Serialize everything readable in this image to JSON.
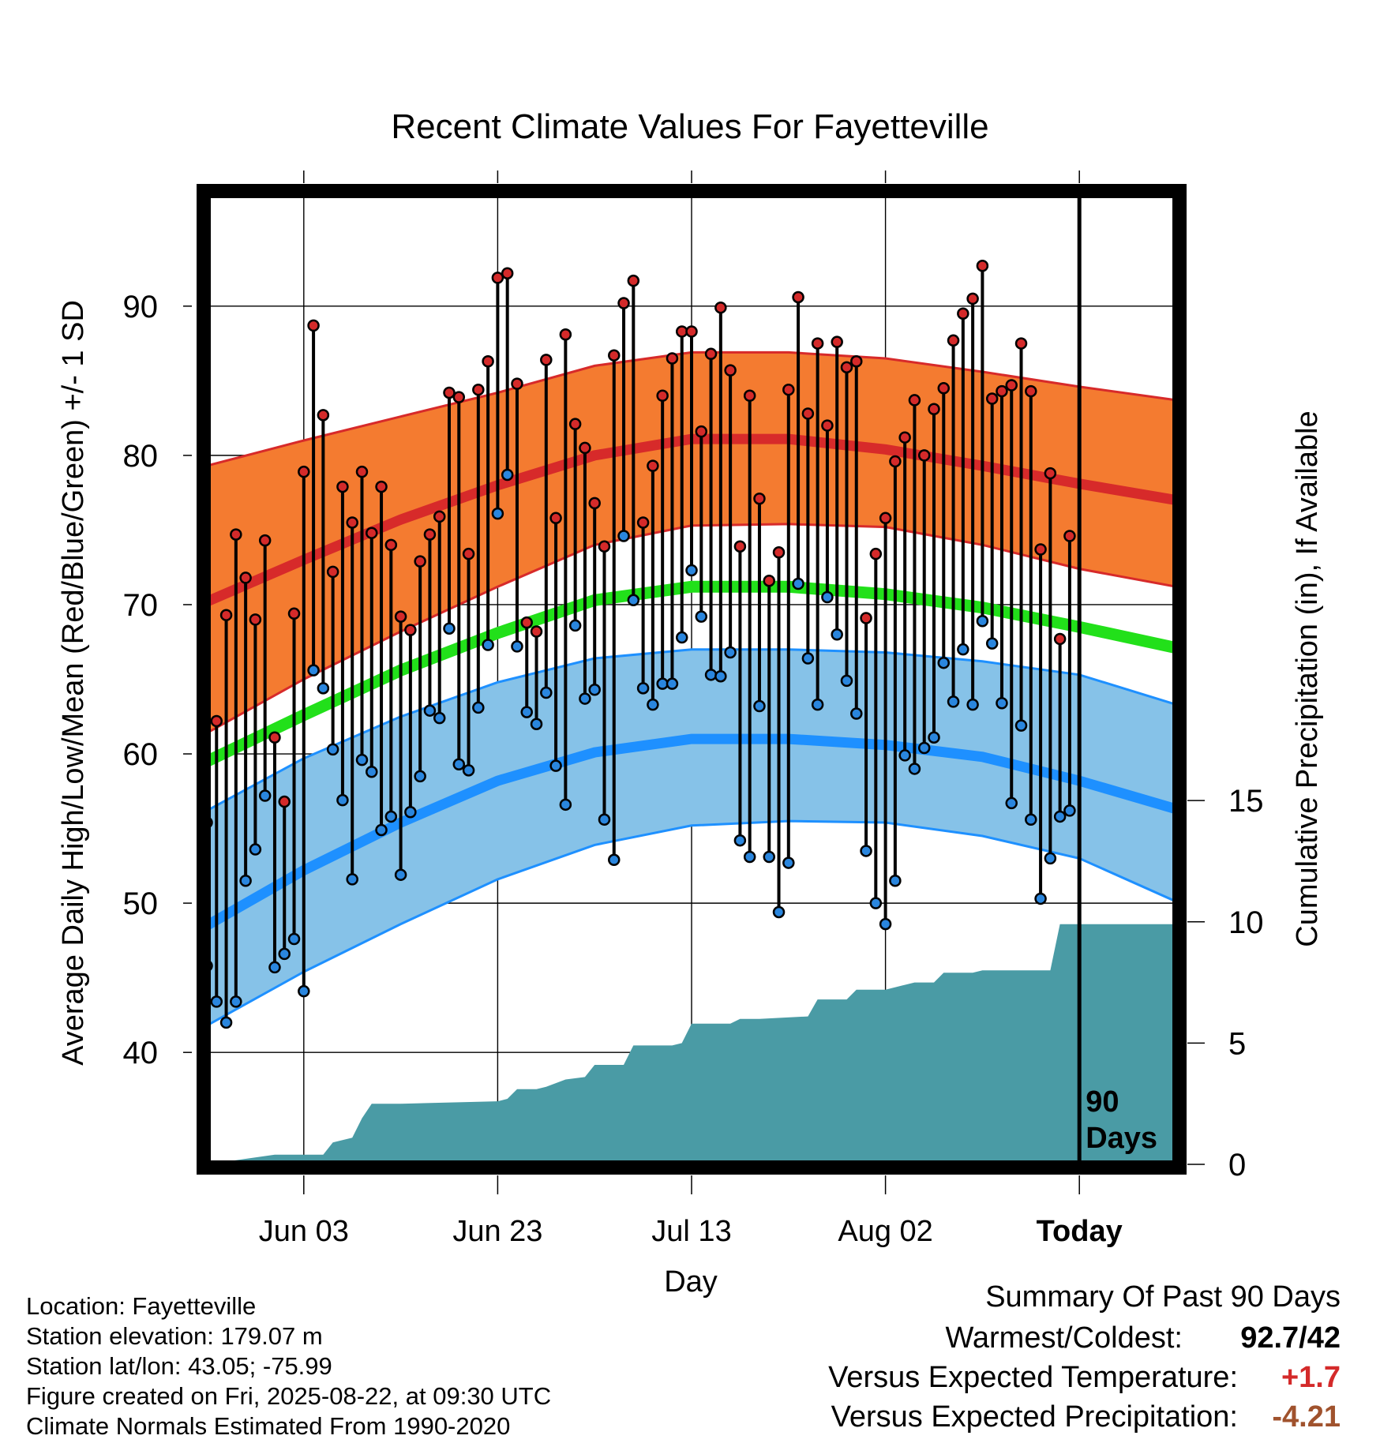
{
  "chart_data": {
    "type": "line",
    "title": "Recent Climate Values For Fayetteville",
    "xlabel": "Day",
    "ylabel": "Average Daily High/Low/Mean (Red/Blue/Green) +/- 1 SD",
    "y2label": "Cumulative Precipitation (in), If Available",
    "ylim": [
      32.5,
      97.5
    ],
    "y2lim": [
      0,
      40
    ],
    "yticks": [
      40,
      50,
      60,
      70,
      80,
      90
    ],
    "y2ticks": [
      0,
      5,
      10,
      15
    ],
    "x_day_range": [
      -90,
      10
    ],
    "x_tick_days": [
      -80,
      -60,
      -40,
      -20,
      0
    ],
    "x_tick_labels": [
      "Jun 03",
      "Jun 23",
      "Jul 13",
      "Aug 02",
      "Today"
    ],
    "today_marker_label": "90\nDays",
    "grid": true,
    "colors": {
      "high_band": "#f47b30",
      "high_mean": "#d72a2a",
      "low_band": "#86c2e8",
      "low_mean": "#1e90ff",
      "mean": "#22e01a",
      "precip": "#4a9ba5",
      "high_dot": "#d42a2a",
      "low_dot": "#2a86de"
    },
    "normals": {
      "day": [
        -90,
        -80,
        -70,
        -60,
        -50,
        -40,
        -30,
        -20,
        -10,
        0,
        10
      ],
      "high_mean": [
        70.2,
        73.0,
        75.7,
        78.0,
        80.0,
        81.1,
        81.1,
        80.4,
        79.3,
        78.1,
        77.0
      ],
      "high_upper": [
        79.3,
        81.0,
        82.6,
        84.2,
        86.0,
        86.9,
        86.9,
        86.5,
        85.6,
        84.6,
        83.7
      ],
      "high_lower": [
        61.4,
        65.0,
        68.2,
        71.2,
        74.0,
        75.3,
        75.4,
        75.2,
        74.0,
        72.4,
        71.2
      ],
      "mean": [
        59.5,
        62.6,
        65.6,
        68.1,
        70.3,
        71.2,
        71.2,
        70.7,
        69.8,
        68.5,
        67.1
      ],
      "low_mean": [
        48.5,
        52.2,
        55.4,
        58.2,
        60.1,
        61.0,
        61.0,
        60.6,
        59.8,
        58.2,
        56.3
      ],
      "low_upper": [
        56.2,
        59.7,
        62.5,
        64.8,
        66.4,
        67.0,
        67.0,
        66.8,
        66.2,
        65.3,
        63.3
      ],
      "low_lower": [
        41.8,
        45.4,
        48.6,
        51.6,
        53.9,
        55.2,
        55.5,
        55.4,
        54.5,
        53.0,
        50.1
      ]
    },
    "highs": [
      55.4,
      62.2,
      69.3,
      74.7,
      71.8,
      69.0,
      74.3,
      61.1,
      56.8,
      69.4,
      78.9,
      88.7,
      82.7,
      72.2,
      77.9,
      75.5,
      78.9,
      74.8,
      77.9,
      74.0,
      69.2,
      68.3,
      72.9,
      74.7,
      75.9,
      84.2,
      83.9,
      73.4,
      84.4,
      86.3,
      91.9,
      92.2,
      84.8,
      68.8,
      68.2,
      86.4,
      75.8,
      88.1,
      82.1,
      80.5,
      76.8,
      73.9,
      86.7,
      90.2,
      91.7,
      75.5,
      79.3,
      84.0,
      86.5,
      88.3,
      88.3,
      81.6,
      86.8,
      89.9,
      85.7,
      73.9,
      84.0,
      77.1,
      71.6,
      73.5,
      84.4,
      90.6,
      82.8,
      87.5,
      82.0,
      87.6,
      85.9,
      86.3,
      69.1,
      73.4,
      75.8,
      79.6,
      81.2,
      83.7,
      80.0,
      83.1,
      84.5,
      87.7,
      89.5,
      90.5,
      92.7,
      83.8,
      84.3,
      84.7,
      87.5,
      84.3,
      73.7,
      78.8,
      67.7,
      74.6
    ],
    "lows": [
      45.8,
      43.4,
      42.0,
      43.4,
      51.5,
      53.6,
      57.2,
      45.7,
      46.6,
      47.6,
      44.1,
      65.6,
      64.4,
      60.3,
      56.9,
      51.6,
      59.6,
      58.8,
      54.9,
      55.8,
      51.9,
      56.1,
      58.5,
      62.9,
      62.4,
      68.4,
      59.3,
      58.9,
      63.1,
      67.3,
      76.1,
      78.7,
      67.2,
      62.8,
      62.0,
      64.1,
      59.2,
      56.6,
      68.6,
      63.7,
      64.3,
      55.6,
      52.9,
      74.6,
      70.3,
      64.4,
      63.3,
      64.7,
      64.7,
      67.8,
      72.3,
      69.2,
      65.3,
      65.2,
      66.8,
      54.2,
      53.1,
      63.2,
      53.1,
      49.4,
      52.7,
      71.4,
      66.4,
      63.3,
      70.5,
      68.0,
      64.9,
      62.7,
      53.5,
      50.0,
      48.6,
      51.5,
      59.9,
      59.0,
      60.4,
      61.1,
      66.1,
      63.5,
      67.0,
      63.3,
      68.9,
      67.4,
      63.4,
      56.7,
      61.9,
      55.6,
      50.3,
      53.0,
      55.8,
      56.2
    ],
    "precip_steps": [
      [
        -90,
        0.0
      ],
      [
        -83,
        0.4
      ],
      [
        -78,
        0.4
      ],
      [
        -77,
        0.9
      ],
      [
        -75,
        1.1
      ],
      [
        -74,
        1.9
      ],
      [
        -73,
        2.5
      ],
      [
        -70,
        2.5
      ],
      [
        -60,
        2.6
      ],
      [
        -59,
        2.7
      ],
      [
        -58,
        3.1
      ],
      [
        -56,
        3.1
      ],
      [
        -55,
        3.2
      ],
      [
        -53,
        3.5
      ],
      [
        -51,
        3.6
      ],
      [
        -50,
        4.1
      ],
      [
        -47,
        4.1
      ],
      [
        -46,
        4.9
      ],
      [
        -42,
        4.9
      ],
      [
        -41,
        5.0
      ],
      [
        -40,
        5.8
      ],
      [
        -36,
        5.8
      ],
      [
        -35,
        6.0
      ],
      [
        -34,
        6.0
      ],
      [
        -33,
        6.0
      ],
      [
        -28,
        6.1
      ],
      [
        -27,
        6.8
      ],
      [
        -24,
        6.8
      ],
      [
        -23,
        7.2
      ],
      [
        -20,
        7.2
      ],
      [
        -18,
        7.4
      ],
      [
        -17,
        7.5
      ],
      [
        -15,
        7.5
      ],
      [
        -14,
        7.9
      ],
      [
        -11,
        7.9
      ],
      [
        -10,
        8.0
      ],
      [
        -8,
        8.0
      ],
      [
        -7,
        8.0
      ],
      [
        -3,
        8.0
      ],
      [
        -2,
        9.9
      ],
      [
        -1,
        9.9
      ],
      [
        0,
        9.9
      ],
      [
        10,
        9.9
      ]
    ]
  },
  "info": {
    "location": "Location: Fayetteville",
    "elevation": "Station elevation: 179.07 m",
    "latlon": "Station lat/lon: 43.05; -75.99",
    "created": "Figure created on Fri, 2025-08-22, at 09:30 UTC",
    "normals": "Climate Normals Estimated From 1990-2020"
  },
  "summary": {
    "title": "Summary Of Past 90 Days",
    "warmest_label": "Warmest/Coldest:",
    "warmest_value": "92.7/42",
    "temp_label": "Versus Expected Temperature:",
    "temp_value": "+1.7",
    "temp_color": "#d42a2a",
    "precip_label": "Versus Expected Precipitation:",
    "precip_value": "-4.21",
    "precip_color": "#a0522d"
  }
}
